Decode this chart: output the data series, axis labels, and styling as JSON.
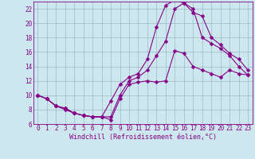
{
  "xlabel": "Windchill (Refroidissement éolien,°C)",
  "bg_color": "#cce8ee",
  "line_color": "#880088",
  "grid_color": "#99bbcc",
  "xlim": [
    -0.5,
    23.5
  ],
  "ylim": [
    6,
    23
  ],
  "xticks": [
    0,
    1,
    2,
    3,
    4,
    5,
    6,
    7,
    8,
    9,
    10,
    11,
    12,
    13,
    14,
    15,
    16,
    17,
    18,
    19,
    20,
    21,
    22,
    23
  ],
  "yticks": [
    6,
    8,
    10,
    12,
    14,
    16,
    18,
    20,
    22
  ],
  "line1_x": [
    0,
    1,
    2,
    3,
    4,
    5,
    6,
    7,
    8,
    9,
    10,
    11,
    12,
    13,
    14,
    15,
    16,
    17,
    18,
    19,
    20,
    21,
    22,
    23
  ],
  "line1_y": [
    10.0,
    9.5,
    8.5,
    8.0,
    7.5,
    7.2,
    7.0,
    7.0,
    6.6,
    9.5,
    11.5,
    11.8,
    12.0,
    11.8,
    12.0,
    16.2,
    15.8,
    14.0,
    13.5,
    13.0,
    12.5,
    13.5,
    13.0,
    12.8
  ],
  "line2_x": [
    0,
    1,
    2,
    3,
    4,
    5,
    6,
    7,
    8,
    9,
    10,
    11,
    12,
    13,
    14,
    15,
    16,
    17,
    18,
    19,
    20,
    21,
    22,
    23
  ],
  "line2_y": [
    10.0,
    9.5,
    8.5,
    8.2,
    7.5,
    7.2,
    7.0,
    7.0,
    7.0,
    10.0,
    12.0,
    12.5,
    13.5,
    15.5,
    17.5,
    22.0,
    22.8,
    21.5,
    21.0,
    18.0,
    17.0,
    15.8,
    15.0,
    13.5
  ],
  "line3_x": [
    0,
    1,
    2,
    3,
    4,
    5,
    6,
    7,
    8,
    9,
    10,
    11,
    12,
    13,
    14,
    15,
    16,
    17,
    18,
    19,
    20,
    21,
    22,
    23
  ],
  "line3_y": [
    10.0,
    9.5,
    8.5,
    8.2,
    7.5,
    7.2,
    7.0,
    7.0,
    9.2,
    11.5,
    12.5,
    13.0,
    15.0,
    19.5,
    22.5,
    23.2,
    22.8,
    22.0,
    18.0,
    17.2,
    16.5,
    15.5,
    14.0,
    12.8
  ],
  "tick_fontsize": 5.5,
  "xlabel_fontsize": 6.0,
  "marker_size": 2.5,
  "line_width": 0.8
}
